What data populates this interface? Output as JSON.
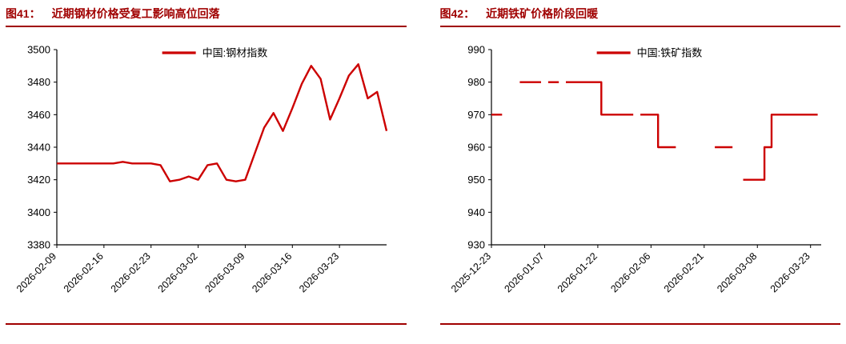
{
  "page": {
    "background": "#ffffff"
  },
  "colors": {
    "title_red": "#a00000",
    "rule_red": "#a00000",
    "line_red": "#cc0000",
    "axis_black": "#000000",
    "tick_text": "#000000"
  },
  "panels": [
    {
      "tag": "图41：",
      "title": "近期钢材价格受复工影响高位回落"
    },
    {
      "tag": "图42：",
      "title": "近期铁矿价格阶段回暖"
    }
  ],
  "chart_data": [
    {
      "type": "line",
      "title": "近期钢材价格受复工影响高位回落",
      "legend": "中国:钢材指数",
      "ylabel": "",
      "xlabel": "",
      "ylim": [
        3380,
        3500
      ],
      "yticks": [
        3380,
        3400,
        3420,
        3440,
        3460,
        3480,
        3500
      ],
      "xlim": [
        0,
        35
      ],
      "xtick_positions": [
        0,
        5,
        10,
        15,
        20,
        25,
        30
      ],
      "xtick_labels": [
        "2026-02-09",
        "2026-02-16",
        "2026-02-23",
        "2026-03-02",
        "2026-03-09",
        "2026-03-16",
        "2026-03-23"
      ],
      "grid": false,
      "legend_position": "top-center",
      "segments": [
        [
          [
            0,
            3430
          ],
          [
            1,
            3430
          ],
          [
            2,
            3430
          ],
          [
            3,
            3430
          ],
          [
            4,
            3430
          ],
          [
            5,
            3430
          ],
          [
            6,
            3430
          ],
          [
            7,
            3431
          ],
          [
            8,
            3430
          ],
          [
            9,
            3430
          ],
          [
            10,
            3430
          ],
          [
            11,
            3429
          ],
          [
            12,
            3419
          ],
          [
            13,
            3420
          ],
          [
            14,
            3422
          ],
          [
            15,
            3420
          ],
          [
            16,
            3429
          ],
          [
            17,
            3430
          ],
          [
            18,
            3420
          ],
          [
            19,
            3419
          ],
          [
            20,
            3420
          ],
          [
            21,
            3436
          ],
          [
            22,
            3452
          ],
          [
            23,
            3461
          ],
          [
            24,
            3450
          ],
          [
            25,
            3464
          ],
          [
            26,
            3479
          ],
          [
            27,
            3490
          ],
          [
            28,
            3482
          ],
          [
            29,
            3457
          ],
          [
            30,
            3470
          ],
          [
            31,
            3484
          ],
          [
            32,
            3491
          ],
          [
            33,
            3470
          ],
          [
            34,
            3474
          ],
          [
            35,
            3450
          ]
        ]
      ]
    },
    {
      "type": "line",
      "title": "近期铁矿价格阶段回暖",
      "legend": "中国:铁矿指数",
      "ylabel": "",
      "xlabel": "",
      "ylim": [
        930,
        990
      ],
      "yticks": [
        930,
        940,
        950,
        960,
        970,
        980,
        990
      ],
      "xlim": [
        0,
        93
      ],
      "xtick_positions": [
        0,
        15,
        30,
        45,
        60,
        75,
        90
      ],
      "xtick_labels": [
        "2025-12-23",
        "2026-01-07",
        "2026-01-22",
        "2026-02-06",
        "2026-02-21",
        "2026-03-08",
        "2026-03-23"
      ],
      "grid": false,
      "legend_position": "top-center",
      "segments": [
        [
          [
            0,
            970
          ],
          [
            3,
            970
          ]
        ],
        [
          [
            8,
            980
          ],
          [
            14,
            980
          ]
        ],
        [
          [
            16,
            980
          ],
          [
            19,
            980
          ]
        ],
        [
          [
            21,
            980
          ],
          [
            31,
            980
          ],
          [
            31,
            970
          ],
          [
            40,
            970
          ]
        ],
        [
          [
            42,
            970
          ],
          [
            47,
            970
          ],
          [
            47,
            960
          ],
          [
            52,
            960
          ]
        ],
        [
          [
            63,
            960
          ],
          [
            68,
            960
          ]
        ],
        [
          [
            71,
            950
          ],
          [
            77,
            950
          ],
          [
            77,
            960
          ],
          [
            79,
            960
          ],
          [
            79,
            970
          ],
          [
            92,
            970
          ]
        ]
      ]
    }
  ]
}
